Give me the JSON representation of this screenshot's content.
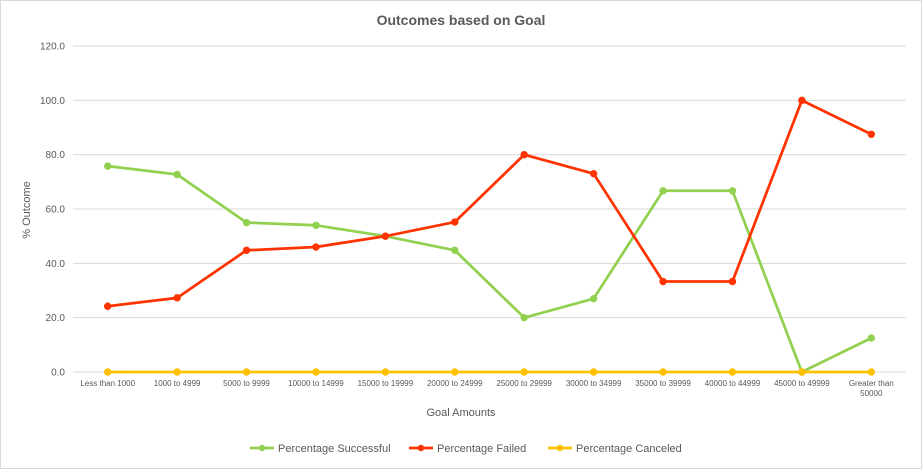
{
  "chart_data": {
    "type": "line",
    "title": "Outcomes based on Goal",
    "xlabel": "Goal Amounts",
    "ylabel": "% Outcome",
    "ylim": [
      0,
      120
    ],
    "yticks": [
      "0.0",
      "20.0",
      "40.0",
      "60.0",
      "80.0",
      "100.0",
      "120.0"
    ],
    "grid": true,
    "legend_position": "bottom",
    "categories": [
      "Less than 1000",
      "1000 to 4999",
      "5000 to 9999",
      "10000 to 14999",
      "15000 to 19999",
      "20000 to 24999",
      "25000 to 29999",
      "30000 to 34999",
      "35000 to 39999",
      "40000 to 44999",
      "45000 to 49999",
      "Greater than 50000"
    ],
    "series": [
      {
        "name": "Percentage Successful",
        "color": "#92d050",
        "values": [
          75.8,
          72.7,
          55.0,
          54.0,
          50.0,
          44.8,
          20.0,
          27.0,
          66.7,
          66.7,
          0.0,
          12.5
        ]
      },
      {
        "name": "Percentage Failed",
        "color": "#ff3300",
        "values": [
          24.2,
          27.3,
          44.8,
          46.0,
          50.0,
          55.2,
          80.0,
          73.0,
          33.3,
          33.3,
          100.0,
          87.5
        ]
      },
      {
        "name": "Percentage Canceled",
        "color": "#ffc000",
        "values": [
          0,
          0,
          0,
          0,
          0,
          0,
          0,
          0,
          0,
          0,
          0,
          0
        ]
      }
    ]
  }
}
